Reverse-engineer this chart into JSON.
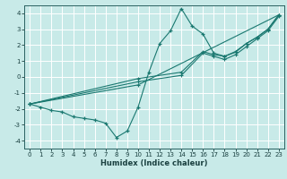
{
  "title": "",
  "xlabel": "Humidex (Indice chaleur)",
  "ylabel": "",
  "bg_color": "#c8eae8",
  "grid_color": "#ffffff",
  "line_color": "#1a7870",
  "xlim": [
    -0.5,
    23.5
  ],
  "ylim": [
    -4.5,
    4.5
  ],
  "xticks": [
    0,
    1,
    2,
    3,
    4,
    5,
    6,
    7,
    8,
    9,
    10,
    11,
    12,
    13,
    14,
    15,
    16,
    17,
    18,
    19,
    20,
    21,
    22,
    23
  ],
  "yticks": [
    -4,
    -3,
    -2,
    -1,
    0,
    1,
    2,
    3,
    4
  ],
  "series": [
    {
      "x": [
        0,
        1,
        2,
        3,
        4,
        5,
        6,
        7,
        8,
        9,
        10,
        11,
        12,
        13,
        14,
        15,
        16,
        17,
        18,
        19,
        20,
        21,
        22,
        23
      ],
      "y": [
        -1.7,
        -1.9,
        -2.1,
        -2.2,
        -2.5,
        -2.6,
        -2.7,
        -2.9,
        -3.8,
        -3.4,
        -1.9,
        0.3,
        2.1,
        2.9,
        4.3,
        3.2,
        2.7,
        1.5,
        1.3,
        1.6,
        2.1,
        2.5,
        3.0,
        3.9
      ]
    },
    {
      "x": [
        0,
        10,
        14,
        16,
        17,
        18,
        19,
        20,
        21,
        22,
        23
      ],
      "y": [
        -1.7,
        -0.1,
        0.3,
        1.6,
        1.4,
        1.3,
        1.55,
        2.1,
        2.5,
        3.0,
        3.9
      ]
    },
    {
      "x": [
        0,
        10,
        14,
        16,
        17,
        18,
        19,
        20,
        21,
        22,
        23
      ],
      "y": [
        -1.7,
        -0.3,
        0.1,
        1.5,
        1.3,
        1.1,
        1.4,
        1.9,
        2.4,
        2.9,
        3.8
      ]
    },
    {
      "x": [
        0,
        10,
        23
      ],
      "y": [
        -1.7,
        -0.5,
        3.9
      ]
    }
  ],
  "xlabel_fontsize": 6.0,
  "tick_fontsize": 5.0
}
